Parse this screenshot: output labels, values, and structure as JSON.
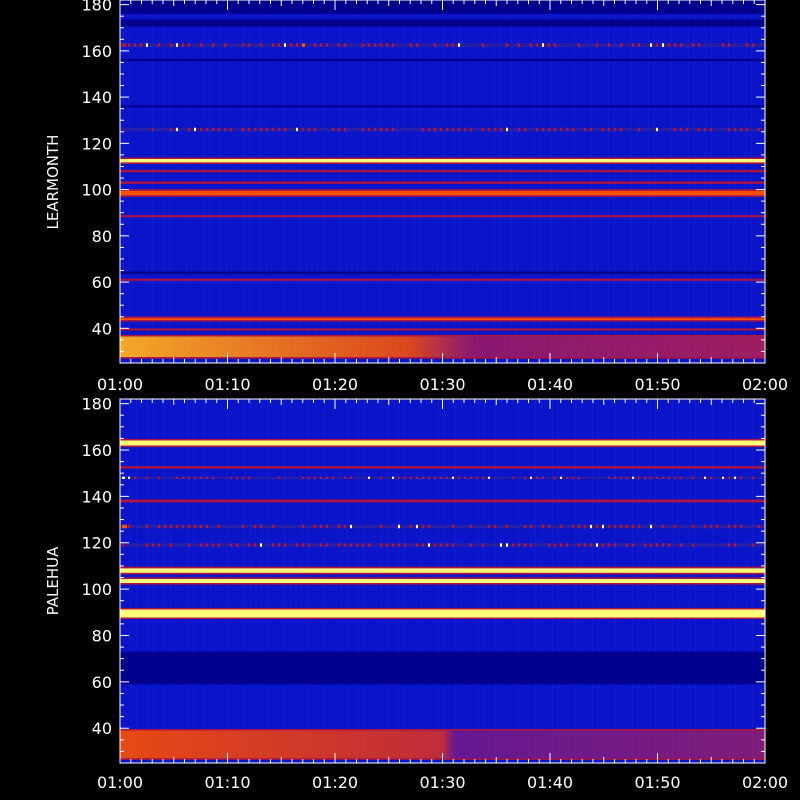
{
  "chart_data": [
    {
      "type": "heatmap",
      "ylabel": "LEARMONTH",
      "ylim": [
        25,
        182
      ],
      "y_ticks": [
        "40",
        "60",
        "80",
        "100",
        "120",
        "140",
        "160",
        "180"
      ],
      "x_ticks": [
        "01:00",
        "01:10",
        "01:20",
        "01:30",
        "01:40",
        "01:50",
        "02:00"
      ],
      "xlim": [
        "01:00",
        "02:00"
      ],
      "colors": {
        "background": "#0a14c8",
        "low": "#00008c",
        "mid": "#b4143c",
        "high": "#ff5000",
        "peak": "#ffff78"
      },
      "bands": [
        {
          "mhz": 179,
          "width": 6,
          "level": "low"
        },
        {
          "mhz": 172,
          "width": 3,
          "level": "low"
        },
        {
          "mhz": 162.5,
          "width": 1.6,
          "level": "mid",
          "dotted": true
        },
        {
          "mhz": 156,
          "width": 1,
          "level": "low"
        },
        {
          "mhz": 136,
          "width": 0.8,
          "level": "low"
        },
        {
          "mhz": 126,
          "width": 1.5,
          "level": "mid",
          "dotted": true
        },
        {
          "mhz": 112.5,
          "width": 1.5,
          "level": "peak"
        },
        {
          "mhz": 108,
          "width": 1,
          "level": "mid"
        },
        {
          "mhz": 103,
          "width": 1,
          "level": "mid"
        },
        {
          "mhz": 98.5,
          "width": 2,
          "level": "high"
        },
        {
          "mhz": 88.5,
          "width": 0.6,
          "level": "mid"
        },
        {
          "mhz": 64,
          "width": 1,
          "level": "low"
        },
        {
          "mhz": 61,
          "width": 0.6,
          "level": "mid"
        },
        {
          "mhz": 44,
          "width": 0.5,
          "level": "high"
        },
        {
          "mhz": 39.5,
          "width": 0.5,
          "level": "mid"
        },
        {
          "mhz": 32,
          "width": 9,
          "level": "high",
          "gradient": true
        }
      ]
    },
    {
      "type": "heatmap",
      "ylabel": "PALEHUA",
      "ylim": [
        25,
        182
      ],
      "y_ticks": [
        "40",
        "60",
        "80",
        "100",
        "120",
        "140",
        "160",
        "180"
      ],
      "x_ticks": [
        "01:00",
        "01:10",
        "01:20",
        "01:30",
        "01:40",
        "01:50",
        "02:00"
      ],
      "xlim": [
        "01:00",
        "02:00"
      ],
      "colors": {
        "background": "#0a14c8",
        "low": "#00008c",
        "mid": "#b4143c",
        "high": "#ff5000",
        "peak": "#ffff78"
      },
      "bands": [
        {
          "mhz": 163,
          "width": 2.2,
          "level": "peak"
        },
        {
          "mhz": 152.5,
          "width": 1,
          "level": "mid"
        },
        {
          "mhz": 148,
          "width": 1,
          "level": "mid",
          "dotted": true
        },
        {
          "mhz": 138,
          "width": 1.2,
          "level": "mid"
        },
        {
          "mhz": 127,
          "width": 1.5,
          "level": "mid",
          "dotted": true
        },
        {
          "mhz": 119,
          "width": 1.5,
          "level": "mid",
          "dotted": true
        },
        {
          "mhz": 108,
          "width": 2,
          "level": "peak"
        },
        {
          "mhz": 103.5,
          "width": 1.8,
          "level": "peak"
        },
        {
          "mhz": 89.5,
          "width": 3.5,
          "level": "peak"
        },
        {
          "mhz": 66,
          "width": 14,
          "level": "low"
        },
        {
          "mhz": 33,
          "width": 12,
          "level": "high",
          "gradient": true
        }
      ]
    }
  ]
}
